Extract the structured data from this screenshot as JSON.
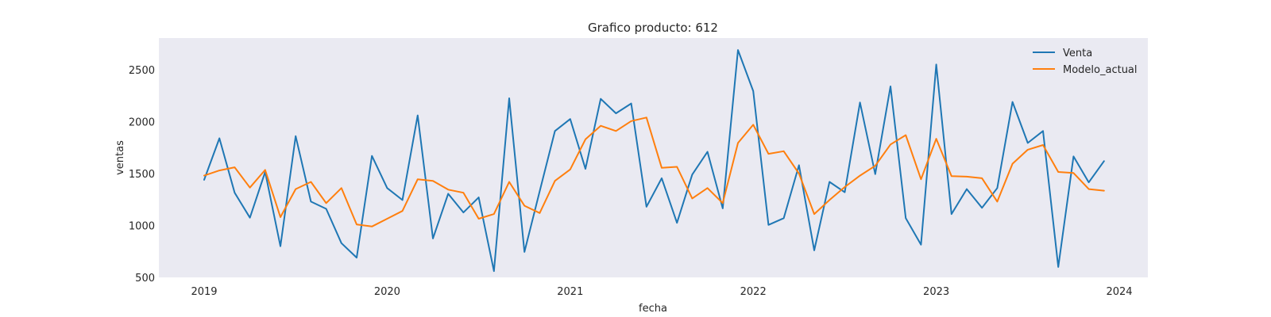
{
  "chart_data": {
    "type": "line",
    "title": "Grafico producto: 612",
    "xlabel": "fecha",
    "ylabel": "ventas",
    "x": [
      "2019-01",
      "2019-02",
      "2019-03",
      "2019-04",
      "2019-05",
      "2019-06",
      "2019-07",
      "2019-08",
      "2019-09",
      "2019-10",
      "2019-11",
      "2019-12",
      "2020-01",
      "2020-02",
      "2020-03",
      "2020-04",
      "2020-05",
      "2020-06",
      "2020-07",
      "2020-08",
      "2020-09",
      "2020-10",
      "2020-11",
      "2020-12",
      "2021-01",
      "2021-02",
      "2021-03",
      "2021-04",
      "2021-05",
      "2021-06",
      "2021-07",
      "2021-08",
      "2021-09",
      "2021-10",
      "2021-11",
      "2021-12",
      "2022-01",
      "2022-02",
      "2022-03",
      "2022-04",
      "2022-05",
      "2022-06",
      "2022-07",
      "2022-08",
      "2022-09",
      "2022-10",
      "2022-11",
      "2022-12",
      "2023-01",
      "2023-02",
      "2023-03",
      "2023-04",
      "2023-05",
      "2023-06",
      "2023-07",
      "2023-08",
      "2023-09",
      "2023-10",
      "2023-11",
      "2023-12"
    ],
    "series": [
      {
        "name": "Venta",
        "color": "#1f77b4",
        "values": [
          1440,
          1840,
          1315,
          1075,
          1515,
          800,
          1860,
          1230,
          1160,
          830,
          690,
          1670,
          1360,
          1245,
          2060,
          875,
          1305,
          1125,
          1270,
          560,
          2225,
          745,
          1330,
          1910,
          2025,
          1545,
          2220,
          2080,
          2175,
          1180,
          1455,
          1025,
          1490,
          1710,
          1165,
          2690,
          2295,
          1005,
          1070,
          1580,
          760,
          1420,
          1320,
          2185,
          1495,
          2340,
          1070,
          815,
          2550,
          1110,
          1350,
          1170,
          1360,
          2190,
          1795,
          1910,
          600,
          1665,
          1415,
          1620
        ]
      },
      {
        "name": "Modelo_actual",
        "color": "#ff7f0e",
        "values": [
          1480,
          1530,
          1560,
          1365,
          1535,
          1080,
          1350,
          1420,
          1215,
          1360,
          1010,
          990,
          1065,
          1140,
          1445,
          1430,
          1345,
          1315,
          1065,
          1110,
          1420,
          1190,
          1120,
          1430,
          1540,
          1830,
          1960,
          1910,
          2005,
          2040,
          1555,
          1565,
          1260,
          1360,
          1215,
          1795,
          1970,
          1690,
          1715,
          1500,
          1110,
          1245,
          1370,
          1480,
          1575,
          1780,
          1870,
          1445,
          1835,
          1475,
          1470,
          1455,
          1230,
          1595,
          1730,
          1775,
          1515,
          1505,
          1350,
          1335
        ]
      }
    ],
    "ylim": [
      450,
      2780
    ],
    "yticks": [
      500,
      1000,
      1500,
      2000,
      2500
    ],
    "xticks": [
      "2019",
      "2020",
      "2021",
      "2022",
      "2023",
      "2024"
    ],
    "grid": false,
    "legend_position": "top-right",
    "background_color": "#eaeaf2"
  }
}
